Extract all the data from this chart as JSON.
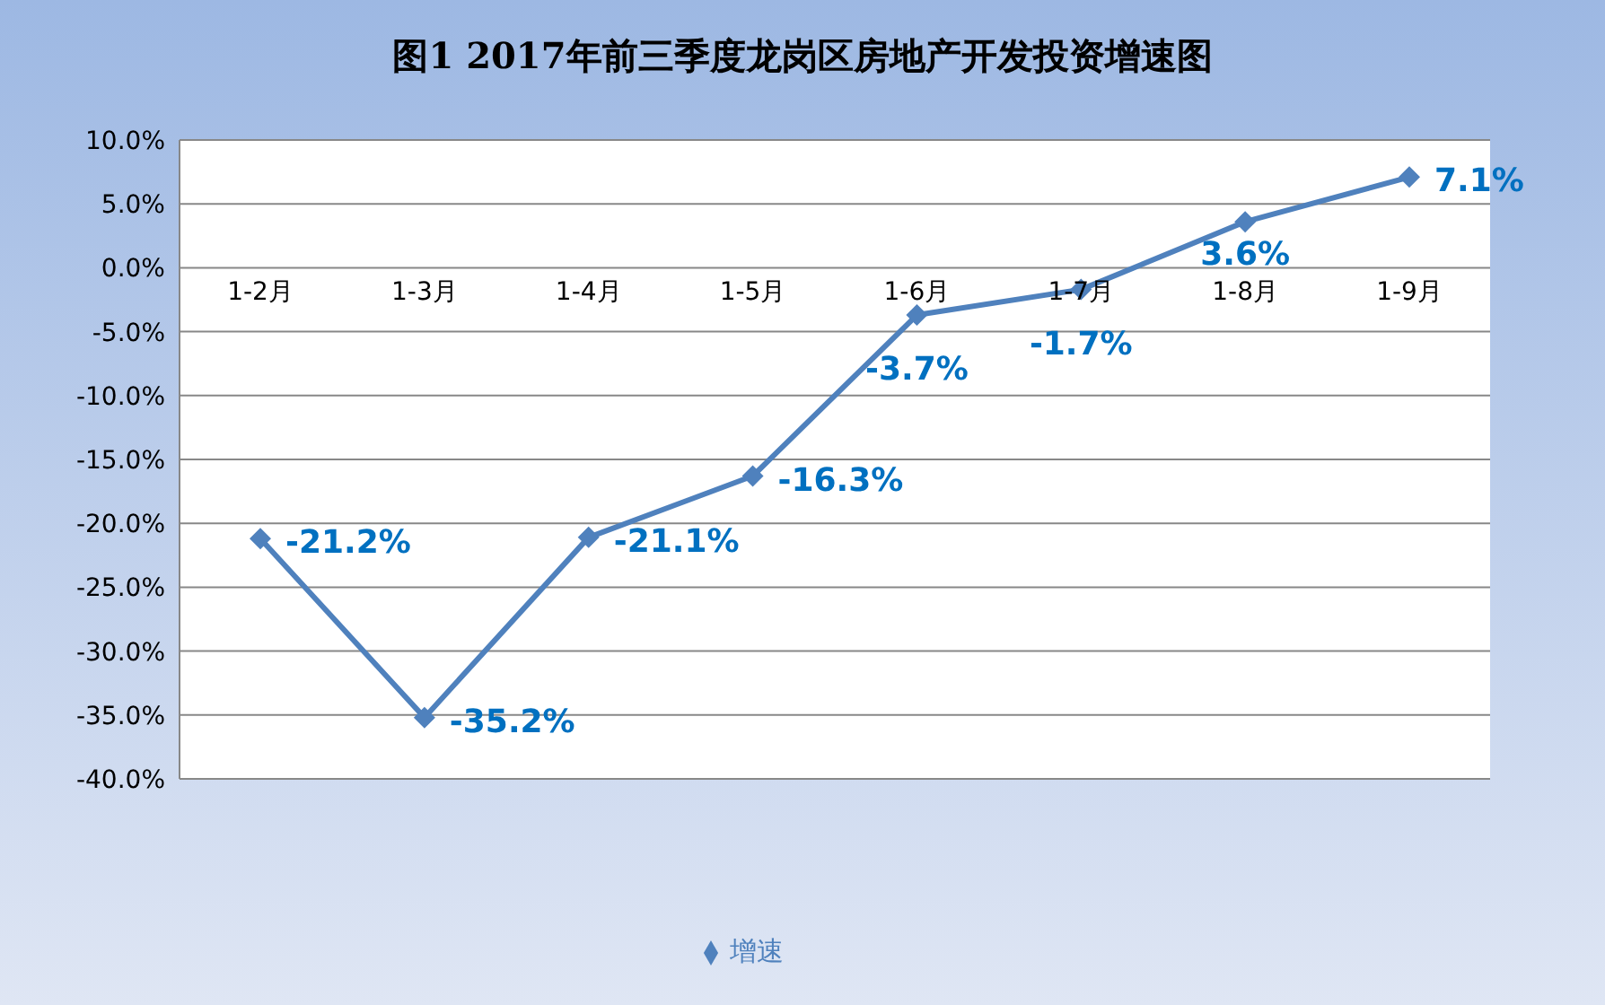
{
  "chart_data": {
    "type": "line",
    "title": "图1  2017年前三季度龙岗区房地产开发投资增速图",
    "categories": [
      "1-2月",
      "1-3月",
      "1-4月",
      "1-5月",
      "1-6月",
      "1-7月",
      "1-8月",
      "1-9月"
    ],
    "series": [
      {
        "name": "增速",
        "color": "#4f81bd",
        "values": [
          -21.2,
          -35.2,
          -21.1,
          -16.3,
          -3.7,
          -1.7,
          3.6,
          7.1
        ],
        "value_labels": [
          "-21.2%",
          "-35.2%",
          "-21.1%",
          "-16.3%",
          "-3.7%",
          "-1.7%",
          "3.6%",
          "7.1%"
        ]
      }
    ],
    "ylim": [
      -40,
      10
    ],
    "yticks": [
      {
        "value": 10,
        "label": "10.0%"
      },
      {
        "value": 5,
        "label": "5.0%"
      },
      {
        "value": 0,
        "label": "0.0%"
      },
      {
        "value": -5,
        "label": "-5.0%"
      },
      {
        "value": -10,
        "label": "-10.0%"
      },
      {
        "value": -15,
        "label": "-15.0%"
      },
      {
        "value": -20,
        "label": "-20.0%"
      },
      {
        "value": -25,
        "label": "-25.0%"
      },
      {
        "value": -30,
        "label": "-30.0%"
      },
      {
        "value": -35,
        "label": "-35.0%"
      },
      {
        "value": -40,
        "label": "-40.0%"
      }
    ],
    "grid": "y",
    "legend": "bottom",
    "marker": "diamond",
    "line_style": "solid"
  }
}
